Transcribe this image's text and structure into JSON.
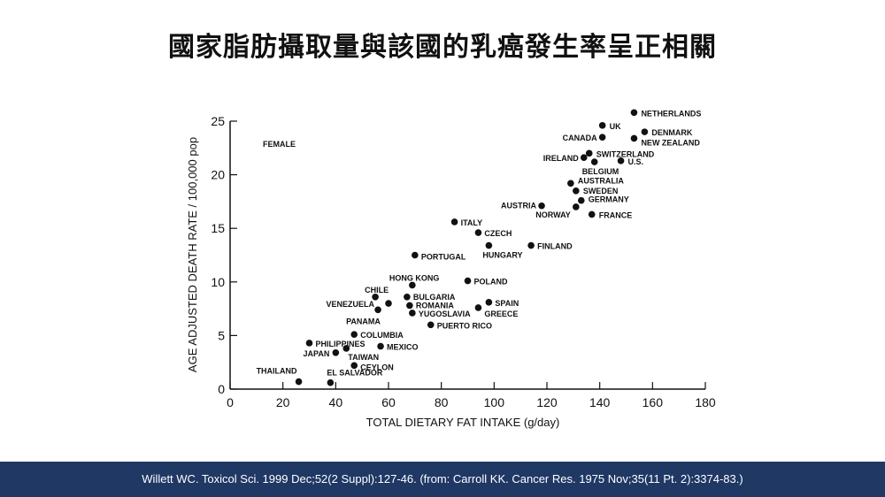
{
  "slide": {
    "title": "國家脂肪攝取量與該國的乳癌發生率呈正相關",
    "citation": "Willett WC. Toxicol Sci. 1999 Dec;52(2 Suppl):127-46. (from:  Carroll KK. Cancer Res. 1975 Nov;35(11 Pt. 2):3374-83.)"
  },
  "colors": {
    "footer": "#1f3864",
    "points": "#111111"
  },
  "chart_data": {
    "type": "scatter",
    "annotation": "FEMALE",
    "xlabel": "TOTAL DIETARY FAT INTAKE (g/day)",
    "ylabel": "AGE ADJUSTED DEATH RATE / 100,000 pop",
    "xlim": [
      0,
      180
    ],
    "ylim": [
      0,
      25
    ],
    "xticks": [
      0,
      20,
      40,
      60,
      80,
      100,
      120,
      140,
      160,
      180
    ],
    "yticks": [
      0,
      5,
      10,
      15,
      20,
      25
    ],
    "grid": false,
    "points": [
      {
        "label": "NETHERLANDS",
        "x": 153,
        "y": 25.8
      },
      {
        "label": "UK",
        "x": 141,
        "y": 24.6
      },
      {
        "label": "DENMARK",
        "x": 157,
        "y": 24.0
      },
      {
        "label": "CANADA",
        "x": 141,
        "y": 23.5
      },
      {
        "label": "NEW ZEALAND",
        "x": 153,
        "y": 23.4
      },
      {
        "label": "SWITZERLAND",
        "x": 136,
        "y": 22.0
      },
      {
        "label": "IRELAND",
        "x": 134,
        "y": 21.6
      },
      {
        "label": "BELGIUM",
        "x": 138,
        "y": 21.2
      },
      {
        "label": "U.S.",
        "x": 148,
        "y": 21.3
      },
      {
        "label": "AUSTRALIA",
        "x": 129,
        "y": 19.2
      },
      {
        "label": "SWEDEN",
        "x": 131,
        "y": 18.5
      },
      {
        "label": "GERMANY",
        "x": 133,
        "y": 17.6
      },
      {
        "label": "AUSTRIA",
        "x": 118,
        "y": 17.1
      },
      {
        "label": "NORWAY",
        "x": 131,
        "y": 17.0
      },
      {
        "label": "FRANCE",
        "x": 137,
        "y": 16.3
      },
      {
        "label": "ITALY",
        "x": 85,
        "y": 15.6
      },
      {
        "label": "CZECH",
        "x": 94,
        "y": 14.6
      },
      {
        "label": "HUNGARY",
        "x": 98,
        "y": 13.4
      },
      {
        "label": "FINLAND",
        "x": 114,
        "y": 13.4
      },
      {
        "label": "PORTUGAL",
        "x": 70,
        "y": 12.5
      },
      {
        "label": "POLAND",
        "x": 90,
        "y": 10.1
      },
      {
        "label": "HONG KONG",
        "x": 69,
        "y": 9.7
      },
      {
        "label": "CHILE",
        "x": 55,
        "y": 8.6
      },
      {
        "label": "BULGARIA",
        "x": 67,
        "y": 8.6
      },
      {
        "label": "VENEZUELA",
        "x": 60,
        "y": 8.0
      },
      {
        "label": "ROMANIA",
        "x": 68,
        "y": 7.8
      },
      {
        "label": "SPAIN",
        "x": 98,
        "y": 8.1
      },
      {
        "label": "GREECE",
        "x": 94,
        "y": 7.6
      },
      {
        "label": "PANAMA",
        "x": 56,
        "y": 7.4
      },
      {
        "label": "YUGOSLAVIA",
        "x": 69,
        "y": 7.1
      },
      {
        "label": "PUERTO RICO",
        "x": 76,
        "y": 6.0
      },
      {
        "label": "COLUMBIA",
        "x": 47,
        "y": 5.1
      },
      {
        "label": "PHILIPPINES",
        "x": 30,
        "y": 4.3
      },
      {
        "label": "MEXICO",
        "x": 57,
        "y": 4.0
      },
      {
        "label": "JAPAN",
        "x": 40,
        "y": 3.4
      },
      {
        "label": "TAIWAN",
        "x": 44,
        "y": 3.8
      },
      {
        "label": "CEYLON",
        "x": 47,
        "y": 2.2
      },
      {
        "label": "THAILAND",
        "x": 26,
        "y": 0.7
      },
      {
        "label": "EL SALVADOR",
        "x": 38,
        "y": 0.6
      }
    ]
  }
}
